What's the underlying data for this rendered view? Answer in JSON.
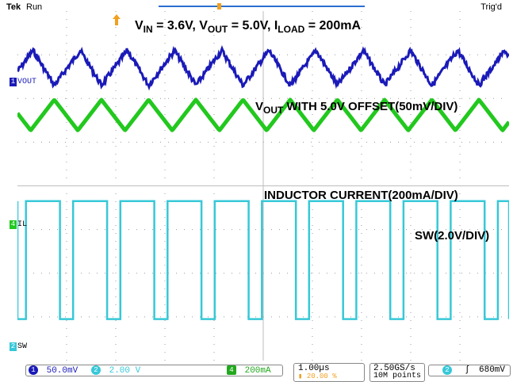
{
  "header": {
    "brand": "Tek",
    "status": "Run",
    "trigger_status": "Trig'd"
  },
  "annotations": {
    "conditions": {
      "vin_label": "V",
      "vin_sub": "IN",
      "vin_value": " = 3.6V, V",
      "vout_sub": "OUT",
      "vout_value": " = 5.0V, I",
      "iload_sub": "LOAD",
      "iload_value": " = 200mA"
    },
    "vout_trace": {
      "prefix": "V",
      "sub": "OUT",
      "text": " WITH 5.0V OFFSET(50mV/DIV)"
    },
    "inductor_trace": "INDUCTOR CURRENT(200mA/DIV)",
    "sw_trace": "SW(2.0V/DIV)"
  },
  "channel_markers": {
    "ch1": {
      "num": "1",
      "label": "VOUT"
    },
    "ch4": {
      "num": "4",
      "label": "IL"
    },
    "ch2": {
      "num": "2",
      "label": "SW"
    }
  },
  "status_bar": {
    "ch1_num": "1",
    "ch1_scale": "50.0mV",
    "ch2_num": "2",
    "ch2_scale": "2.00 V",
    "ch4_num": "4",
    "ch4_scale": "200mA",
    "timebase": "1.00µs",
    "trigger_pos": "20.00 %",
    "sample_rate": "2.50GS/s",
    "record_length": "10M points",
    "trig_source": "2",
    "trig_slope": "ʃ",
    "trig_level": "680mV"
  },
  "colors": {
    "ch1": "#1a1ab8",
    "ch2": "#37c8d8",
    "ch4": "#22c81e",
    "grid": "#9a9a9a",
    "trigger_marker": "#f0a020"
  },
  "chart_data": {
    "type": "line",
    "instrument": "oscilloscope",
    "x_divisions": 10,
    "y_divisions": 8,
    "timebase_per_div_us": 1.0,
    "switching_period_divs": 0.96,
    "series": [
      {
        "name": "VOUT",
        "channel": 1,
        "scale": "50.0mV/div",
        "waveform": "sawtooth-ripple",
        "ripple_divs": 0.8
      },
      {
        "name": "IL",
        "channel": 4,
        "scale": "200mA/div",
        "waveform": "triangle",
        "peak_to_peak_divs": 0.7
      },
      {
        "name": "SW",
        "channel": 2,
        "scale": "2.00V/div",
        "waveform": "square",
        "high_divs": 2.7
      }
    ]
  }
}
